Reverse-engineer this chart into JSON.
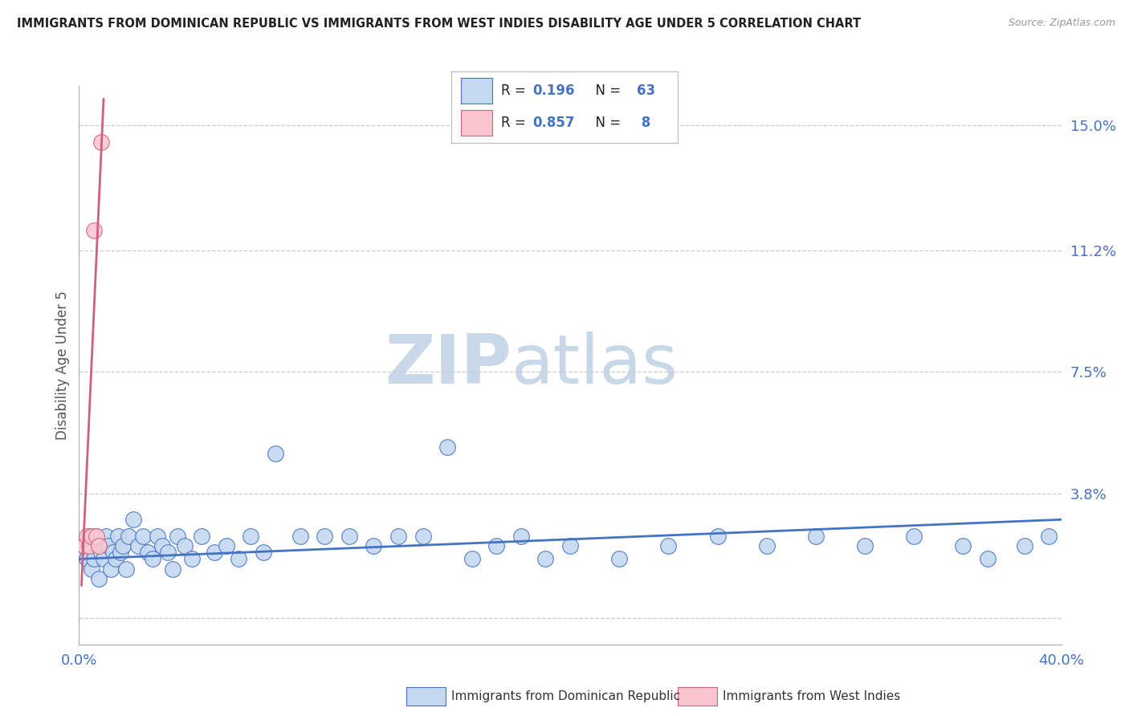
{
  "title": "IMMIGRANTS FROM DOMINICAN REPUBLIC VS IMMIGRANTS FROM WEST INDIES DISABILITY AGE UNDER 5 CORRELATION CHART",
  "source": "Source: ZipAtlas.com",
  "ylabel": "Disability Age Under 5",
  "yticks": [
    0.0,
    0.038,
    0.075,
    0.112,
    0.15
  ],
  "xmin": 0.0,
  "xmax": 0.4,
  "ymin": -0.008,
  "ymax": 0.162,
  "r_blue": 0.196,
  "n_blue": 63,
  "r_pink": 0.857,
  "n_pink": 8,
  "color_blue_fill": "#c5d9f0",
  "color_pink_fill": "#f9c6d0",
  "color_blue_edge": "#4472c4",
  "color_pink_edge": "#d06080",
  "color_blue_text": "#4472c4",
  "color_pink_text": "#4472c4",
  "color_line_blue": "#4472c4",
  "color_line_pink": "#d06080",
  "legend_label_blue": "Immigrants from Dominican Republic",
  "legend_label_pink": "Immigrants from West Indies",
  "background_color": "#ffffff",
  "grid_color": "#cccccc",
  "blue_x": [
    0.001,
    0.002,
    0.003,
    0.004,
    0.005,
    0.005,
    0.006,
    0.007,
    0.008,
    0.009,
    0.01,
    0.011,
    0.012,
    0.013,
    0.014,
    0.015,
    0.016,
    0.017,
    0.018,
    0.019,
    0.02,
    0.022,
    0.024,
    0.026,
    0.028,
    0.03,
    0.032,
    0.034,
    0.036,
    0.038,
    0.04,
    0.043,
    0.046,
    0.05,
    0.055,
    0.06,
    0.065,
    0.07,
    0.075,
    0.08,
    0.09,
    0.1,
    0.11,
    0.12,
    0.13,
    0.14,
    0.15,
    0.16,
    0.17,
    0.18,
    0.19,
    0.2,
    0.22,
    0.24,
    0.26,
    0.28,
    0.3,
    0.32,
    0.34,
    0.36,
    0.37,
    0.385,
    0.395
  ],
  "blue_y": [
    0.02,
    0.022,
    0.018,
    0.025,
    0.015,
    0.022,
    0.018,
    0.025,
    0.012,
    0.02,
    0.018,
    0.025,
    0.022,
    0.015,
    0.02,
    0.018,
    0.025,
    0.02,
    0.022,
    0.015,
    0.025,
    0.03,
    0.022,
    0.025,
    0.02,
    0.018,
    0.025,
    0.022,
    0.02,
    0.015,
    0.025,
    0.022,
    0.018,
    0.025,
    0.02,
    0.022,
    0.018,
    0.025,
    0.02,
    0.05,
    0.025,
    0.025,
    0.025,
    0.022,
    0.025,
    0.025,
    0.052,
    0.018,
    0.022,
    0.025,
    0.018,
    0.022,
    0.018,
    0.022,
    0.025,
    0.022,
    0.025,
    0.022,
    0.025,
    0.022,
    0.018,
    0.022,
    0.025
  ],
  "pink_x": [
    0.002,
    0.003,
    0.004,
    0.005,
    0.006,
    0.007,
    0.008,
    0.009
  ],
  "pink_y": [
    0.022,
    0.025,
    0.022,
    0.025,
    0.118,
    0.025,
    0.022,
    0.145
  ],
  "blue_trend_x0": 0.0,
  "blue_trend_x1": 0.4,
  "blue_trend_y0": 0.018,
  "blue_trend_y1": 0.03,
  "pink_trend_x0": 0.001,
  "pink_trend_x1": 0.01,
  "pink_trend_y0": 0.01,
  "pink_trend_y1": 0.158,
  "watermark_zip_color": "#c8d8e8",
  "watermark_atlas_color": "#c8d8e8"
}
